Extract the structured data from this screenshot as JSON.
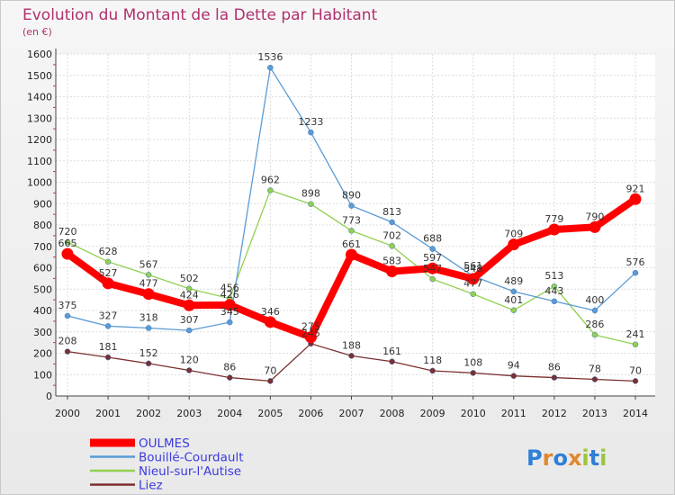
{
  "chart_data": {
    "type": "line",
    "title": "Evolution du Montant de la Dette par Habitant",
    "subtitle": "(en €)",
    "x": [
      "2000",
      "2001",
      "2002",
      "2003",
      "2004",
      "2005",
      "2006",
      "2007",
      "2008",
      "2009",
      "2010",
      "2011",
      "2012",
      "2013",
      "2014"
    ],
    "yticks": [
      "0",
      "100",
      "200",
      "300",
      "400",
      "500",
      "600",
      "700",
      "800",
      "900",
      "1000",
      "1100",
      "1200",
      "1300",
      "1400",
      "1500",
      "1600"
    ],
    "ylim": [
      0,
      1600
    ],
    "grid": true,
    "legend_position": "bottom-left",
    "series": [
      {
        "name": "OULMES",
        "color": "#ff0000",
        "values": [
          665,
          527,
          477,
          424,
          426,
          346,
          275,
          661,
          583,
          597,
          548,
          709,
          779,
          790,
          921
        ]
      },
      {
        "name": "Bouillé-Courdault",
        "color": "#5b9bd5",
        "values": [
          375,
          327,
          318,
          307,
          345,
          1536,
          1233,
          890,
          813,
          688,
          561,
          489,
          443,
          400,
          576
        ]
      },
      {
        "name": "Nieul-sur-l'Autise",
        "color": "#92d050",
        "values": [
          720,
          628,
          567,
          502,
          456,
          962,
          898,
          773,
          702,
          547,
          477,
          401,
          513,
          286,
          241
        ]
      },
      {
        "name": "Liez",
        "color": "#7b2f2f",
        "values": [
          208,
          181,
          152,
          120,
          86,
          70,
          245,
          188,
          161,
          118,
          108,
          94,
          86,
          78,
          70
        ]
      }
    ],
    "data_labels": {
      "OULMES": [
        "665",
        "527",
        "477",
        "424",
        "426",
        "346",
        "275",
        "661",
        "583",
        "597",
        "548",
        "709",
        "779",
        "790",
        "921"
      ],
      "Bouillé-Courdault": [
        "375",
        "327",
        "318",
        "307",
        "345",
        "1536",
        "1233",
        "890",
        "813",
        "688",
        "561",
        "489",
        "443",
        "400",
        "576"
      ],
      "Nieul-sur-l'Autise": [
        "720",
        "628",
        "567",
        "502",
        "456",
        "962",
        "898",
        "773",
        "702",
        "547",
        "477",
        "401",
        "513",
        "286",
        "241"
      ],
      "Liez": [
        "208",
        "181",
        "152",
        "120",
        "86",
        "70",
        "245",
        "188",
        "161",
        "118",
        "108",
        "94",
        "86",
        "78",
        "70"
      ]
    }
  },
  "logo": {
    "text": "Proxiti"
  }
}
